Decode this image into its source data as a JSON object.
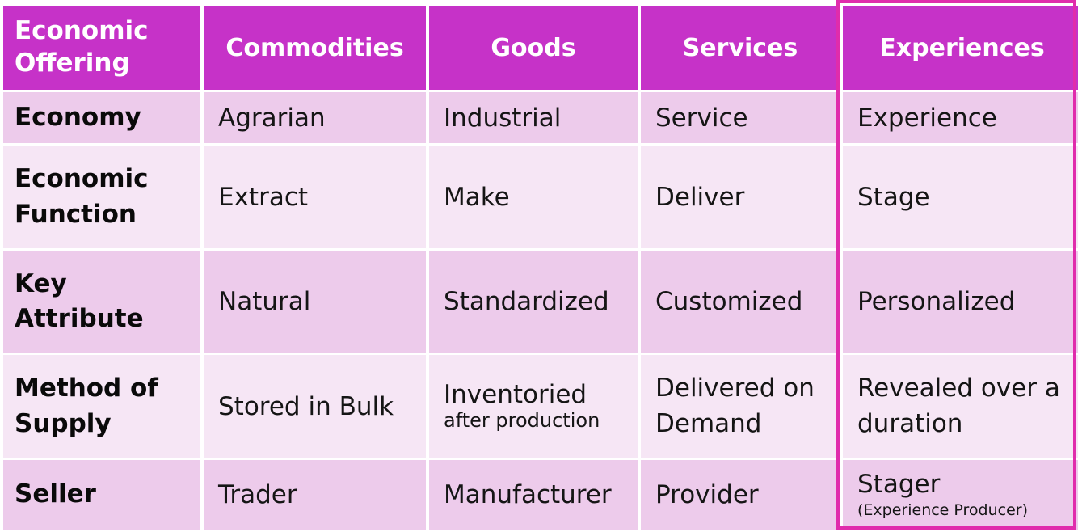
{
  "header": {
    "offering_line1": "Economic",
    "offering_line2": "Offering",
    "columns": [
      "Commodities",
      "Goods",
      "Services",
      "Experiences"
    ]
  },
  "rows": [
    {
      "label_line1": "Economy",
      "label_line2": "",
      "cells": [
        "Agrarian",
        "Industrial",
        "Service",
        "Experience"
      ]
    },
    {
      "label_line1": "Economic",
      "label_line2": "Function",
      "cells": [
        "Extract",
        "Make",
        "Deliver",
        "Stage"
      ]
    },
    {
      "label_line1": "Key",
      "label_line2": "Attribute",
      "cells": [
        "Natural",
        "Standardized",
        "Customized",
        "Personalized"
      ]
    },
    {
      "label_line1": "Method of",
      "label_line2": "Supply",
      "cells": [
        "Stored in Bulk",
        "Inventoried",
        "Delivered on Demand",
        "Revealed over a duration"
      ],
      "goods_note": "after production"
    },
    {
      "label_line1": "Seller",
      "label_line2": "",
      "cells": [
        "Trader",
        "Manufacturer",
        "Provider",
        "Stager"
      ],
      "experiences_note": "(Experience Producer)"
    }
  ],
  "colors": {
    "header": "#c632c8",
    "row_dark": "#edcbeb",
    "row_light": "#f6e6f5",
    "highlight_border": "#e02cac"
  }
}
